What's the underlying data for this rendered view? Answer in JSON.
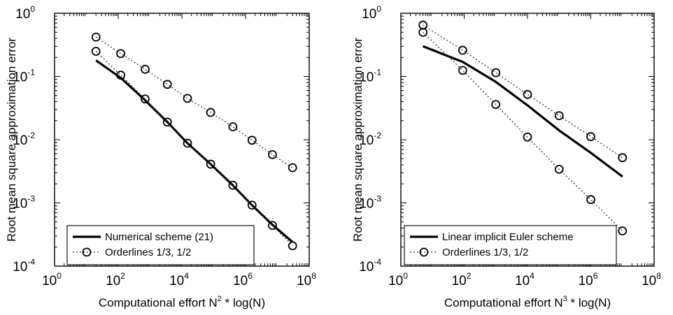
{
  "chart_data": [
    {
      "type": "line",
      "xscale": "log",
      "yscale": "log",
      "xlim": [
        1,
        100000000
      ],
      "ylim": [
        0.0001,
        1
      ],
      "xlabel": "Computational effort N",
      "xlabel_sup": "2",
      "xlabel_tail": " * log(N)",
      "ylabel": "Root mean square approximation error",
      "x_ticks": [
        {
          "base": "10",
          "exp": "0",
          "value": 1
        },
        {
          "base": "10",
          "exp": "2",
          "value": 100
        },
        {
          "base": "10",
          "exp": "4",
          "value": 10000
        },
        {
          "base": "10",
          "exp": "6",
          "value": 1000000
        },
        {
          "base": "10",
          "exp": "8",
          "value": 100000000
        }
      ],
      "y_ticks": [
        {
          "base": "10",
          "exp": "-4",
          "value": 0.0001
        },
        {
          "base": "10",
          "exp": "-3",
          "value": 0.001
        },
        {
          "base": "10",
          "exp": "-2",
          "value": 0.01
        },
        {
          "base": "10",
          "exp": "-1",
          "value": 0.1
        },
        {
          "base": "10",
          "exp": "0",
          "value": 1
        }
      ],
      "legend_position": "bottom-left",
      "series": [
        {
          "name": "Numerical scheme (21)",
          "style": "solid-thick",
          "x": [
            20,
            120,
            700,
            3500,
            15000,
            80000,
            400000,
            1600000,
            7000000,
            30000000
          ],
          "y": [
            0.18,
            0.095,
            0.042,
            0.019,
            0.0088,
            0.0041,
            0.0019,
            0.00092,
            0.00045,
            0.00024
          ]
        },
        {
          "name": "Orderlines 1/3, 1/2",
          "style": "dotted-circles",
          "lines": [
            {
              "x": [
                20,
                120,
                700,
                3500,
                15000,
                80000,
                400000,
                1600000,
                7000000,
                30000000
              ],
              "y": [
                0.42,
                0.23,
                0.13,
                0.075,
                0.045,
                0.027,
                0.016,
                0.0098,
                0.0058,
                0.0036
              ]
            },
            {
              "x": [
                20,
                120,
                700,
                3500,
                15000,
                80000,
                400000,
                1600000,
                7000000,
                30000000
              ],
              "y": [
                0.25,
                0.105,
                0.044,
                0.019,
                0.0088,
                0.0041,
                0.0019,
                0.00092,
                0.00044,
                0.00021
              ]
            }
          ]
        }
      ]
    },
    {
      "type": "line",
      "xscale": "log",
      "yscale": "log",
      "xlim": [
        1,
        100000000
      ],
      "ylim": [
        0.0001,
        1
      ],
      "xlabel": "Computational effort N",
      "xlabel_sup": "3",
      "xlabel_tail": " * log(N)",
      "ylabel": "Root mean square approximation error",
      "x_ticks": [
        {
          "base": "10",
          "exp": "0",
          "value": 1
        },
        {
          "base": "10",
          "exp": "2",
          "value": 100
        },
        {
          "base": "10",
          "exp": "4",
          "value": 10000
        },
        {
          "base": "10",
          "exp": "6",
          "value": 1000000
        },
        {
          "base": "10",
          "exp": "8",
          "value": 100000000
        }
      ],
      "y_ticks": [
        {
          "base": "10",
          "exp": "-4",
          "value": 0.0001
        },
        {
          "base": "10",
          "exp": "-3",
          "value": 0.001
        },
        {
          "base": "10",
          "exp": "-2",
          "value": 0.01
        },
        {
          "base": "10",
          "exp": "-1",
          "value": 0.1
        },
        {
          "base": "10",
          "exp": "0",
          "value": 1
        }
      ],
      "legend_position": "bottom-right",
      "series": [
        {
          "name": "Linear implicit Euler scheme",
          "style": "solid-thick",
          "x": [
            5,
            90,
            1000,
            10000,
            100000,
            1000000,
            10000000
          ],
          "y": [
            0.3,
            0.17,
            0.082,
            0.035,
            0.014,
            0.0062,
            0.0026
          ]
        },
        {
          "name": "Orderlines 1/3, 1/2",
          "style": "dotted-circles",
          "lines": [
            {
              "x": [
                5,
                90,
                1000,
                10000,
                100000,
                1000000,
                10000000
              ],
              "y": [
                0.65,
                0.26,
                0.115,
                0.052,
                0.024,
                0.0112,
                0.0052
              ]
            },
            {
              "x": [
                5,
                90,
                1000,
                10000,
                100000,
                1000000,
                10000000
              ],
              "y": [
                0.5,
                0.125,
                0.036,
                0.011,
                0.0034,
                0.00113,
                0.00036
              ]
            }
          ]
        }
      ]
    }
  ]
}
